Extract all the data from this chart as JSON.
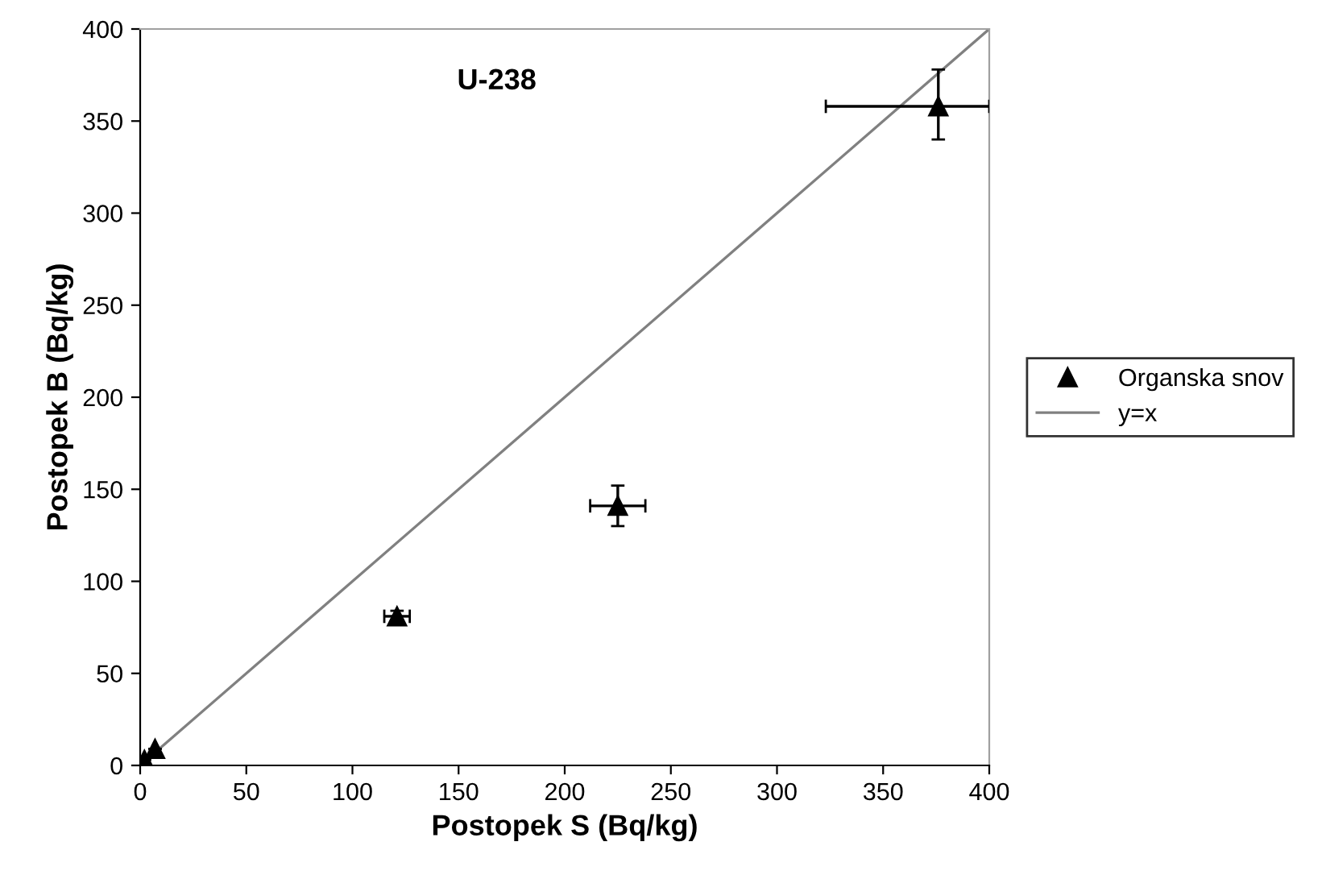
{
  "chart_data": {
    "type": "scatter",
    "title": "U-238",
    "xlabel": "Postopek S (Bq/kg)",
    "ylabel": "Postopek B (Bq/kg)",
    "xlim": [
      0,
      400
    ],
    "ylim": [
      0,
      400
    ],
    "xticks": [
      0,
      50,
      100,
      150,
      200,
      250,
      300,
      350,
      400
    ],
    "yticks": [
      0,
      50,
      100,
      150,
      200,
      250,
      300,
      350,
      400
    ],
    "grid": false,
    "legend": "right",
    "series": [
      {
        "name": "Organska snov",
        "color": "#000000",
        "marker": "triangle",
        "x": [
          2,
          7,
          121,
          225,
          376
        ],
        "values": [
          3,
          9,
          81,
          141,
          358
        ],
        "errors": [
          null,
          null,
          [
            78,
            84
          ],
          [
            130,
            152
          ],
          [
            340,
            378
          ]
        ],
        "xerrors": [
          null,
          null,
          [
            115,
            127
          ],
          [
            212,
            238
          ],
          [
            323,
            400
          ]
        ]
      },
      {
        "name": "y=x",
        "type": "line",
        "color": "#808080",
        "marker": "none",
        "line_style": "solid",
        "x": [
          0,
          400
        ],
        "values": [
          0,
          400
        ]
      }
    ]
  }
}
